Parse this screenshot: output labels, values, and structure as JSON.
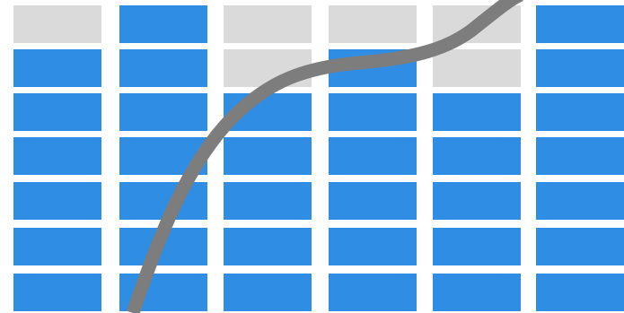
{
  "graphic": {
    "icon": "stacked-level-bars-with-growth-curve-icon",
    "colors": {
      "filled": "#2f8de4",
      "empty": "#dadada",
      "curve": "#7d7d7d",
      "background": "#ffffff"
    },
    "columns": [
      {
        "filled": 6,
        "total": 7
      },
      {
        "filled": 7,
        "total": 7
      },
      {
        "filled": 5,
        "total": 7
      },
      {
        "filled": 6,
        "total": 7
      },
      {
        "filled": 5,
        "total": 7
      },
      {
        "filled": 7,
        "total": 7
      }
    ]
  }
}
